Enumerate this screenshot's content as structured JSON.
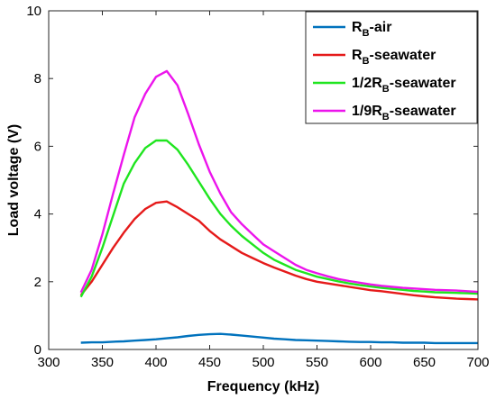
{
  "chart_data": {
    "type": "line",
    "xlabel": "Frequency (kHz)",
    "ylabel": "Load voltage (V)",
    "xlim": [
      300,
      700
    ],
    "ylim": [
      0,
      10
    ],
    "x_ticks": [
      300,
      350,
      400,
      450,
      500,
      550,
      600,
      650,
      700
    ],
    "y_ticks": [
      0,
      2,
      4,
      6,
      8,
      10
    ],
    "grid": false,
    "legend_position": "top-right",
    "x": [
      330,
      340,
      350,
      360,
      370,
      380,
      390,
      400,
      410,
      420,
      430,
      440,
      450,
      460,
      470,
      480,
      490,
      500,
      510,
      520,
      530,
      540,
      550,
      560,
      570,
      580,
      590,
      600,
      610,
      620,
      630,
      640,
      650,
      660,
      670,
      680,
      690,
      700
    ],
    "series": [
      {
        "legend_main": "R",
        "legend_sub": "B",
        "legend_rest": "-air",
        "color": "#0072BD",
        "values": [
          0.2,
          0.21,
          0.21,
          0.23,
          0.24,
          0.26,
          0.28,
          0.3,
          0.33,
          0.36,
          0.4,
          0.43,
          0.45,
          0.46,
          0.44,
          0.41,
          0.38,
          0.35,
          0.32,
          0.3,
          0.28,
          0.27,
          0.26,
          0.25,
          0.24,
          0.23,
          0.22,
          0.22,
          0.21,
          0.21,
          0.2,
          0.2,
          0.2,
          0.19,
          0.19,
          0.19,
          0.19,
          0.19
        ]
      },
      {
        "legend_main": "R",
        "legend_sub": "B",
        "legend_rest": "-seawater",
        "color": "#E51A1A",
        "values": [
          1.6,
          2.0,
          2.5,
          3.0,
          3.45,
          3.85,
          4.15,
          4.33,
          4.37,
          4.2,
          4.0,
          3.8,
          3.5,
          3.25,
          3.05,
          2.85,
          2.7,
          2.55,
          2.42,
          2.3,
          2.18,
          2.08,
          2.0,
          1.95,
          1.9,
          1.85,
          1.8,
          1.75,
          1.72,
          1.68,
          1.64,
          1.6,
          1.57,
          1.54,
          1.52,
          1.5,
          1.49,
          1.48
        ]
      },
      {
        "legend_main": "1/2R",
        "legend_sub": "B",
        "legend_rest": "-seawater",
        "color": "#1FE51F",
        "values": [
          1.55,
          2.15,
          3.0,
          3.95,
          4.9,
          5.5,
          5.95,
          6.17,
          6.17,
          5.9,
          5.45,
          4.95,
          4.45,
          4.0,
          3.65,
          3.35,
          3.1,
          2.85,
          2.65,
          2.5,
          2.35,
          2.25,
          2.15,
          2.08,
          2.01,
          1.95,
          1.9,
          1.86,
          1.82,
          1.79,
          1.76,
          1.73,
          1.71,
          1.69,
          1.68,
          1.67,
          1.66,
          1.65
        ]
      },
      {
        "legend_main": "1/9R",
        "legend_sub": "B",
        "legend_rest": "-seawater",
        "color": "#EC14EC",
        "values": [
          1.68,
          2.35,
          3.4,
          4.6,
          5.75,
          6.85,
          7.55,
          8.05,
          8.22,
          7.8,
          6.95,
          6.05,
          5.25,
          4.6,
          4.05,
          3.7,
          3.4,
          3.1,
          2.9,
          2.7,
          2.5,
          2.35,
          2.25,
          2.16,
          2.08,
          2.02,
          1.97,
          1.92,
          1.88,
          1.85,
          1.82,
          1.8,
          1.78,
          1.76,
          1.75,
          1.74,
          1.72,
          1.7
        ]
      }
    ]
  }
}
